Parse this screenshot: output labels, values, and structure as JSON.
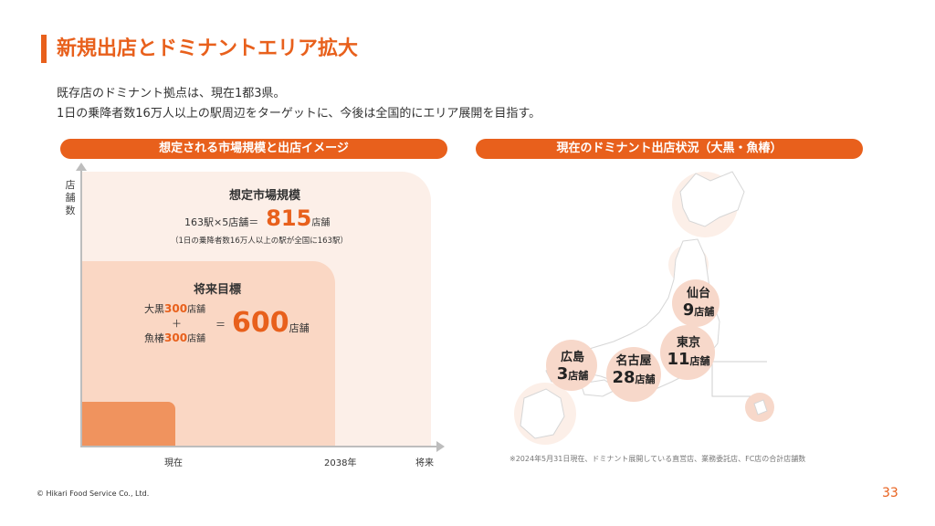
{
  "header": {
    "title": "新規出店とドミナントエリア拡大"
  },
  "intro": {
    "line1": "既存店のドミナント拠点は、現在1都3県。",
    "line2": "1日の乗降者数16万人以上の駅周辺をターゲットに、今後は全国的にエリア展開を目指す。"
  },
  "left_panel": {
    "heading": "想定される市場規模と出店イメージ",
    "y_axis_label": "店舗数",
    "x_ticks": [
      "現在",
      "2038年",
      "将来"
    ],
    "market": {
      "title": "想定市場規模",
      "formula": "163駅×5店舗＝",
      "value": "815",
      "unit": "店舗",
      "note": "（1日の乗降者数16万人以上の駅が全国に163駅）"
    },
    "goal": {
      "title": "将来目標",
      "brand1": "大黒",
      "brand1_value": "300",
      "brand2": "魚椿",
      "brand2_value": "300",
      "small_unit": "店舗",
      "plus": "＋",
      "equals": "＝",
      "value": "600",
      "unit": "店舗"
    }
  },
  "right_panel": {
    "heading": "現在のドミナント出店状況（大黒・魚椿）",
    "regions": [
      {
        "city": "仙台",
        "count": "9",
        "unit": "店舗"
      },
      {
        "city": "東京",
        "count": "11",
        "unit": "店舗"
      },
      {
        "city": "名古屋",
        "count": "28",
        "unit": "店舗"
      },
      {
        "city": "広島",
        "count": "3",
        "unit": "店舗"
      }
    ],
    "footnote": "※2024年5月31日現在、ドミナント展開している直営店、業務委託店、FC店の合計店舗数"
  },
  "footer": {
    "copyright": "© Hikari Food Service Co., Ltd.",
    "page_number": "33"
  },
  "colors": {
    "accent": "#e8601c",
    "area_outer": "#fcefe8",
    "area_mid": "#fad7c4",
    "area_inner": "#f0935e",
    "map_circle": "#f7d8ca"
  }
}
